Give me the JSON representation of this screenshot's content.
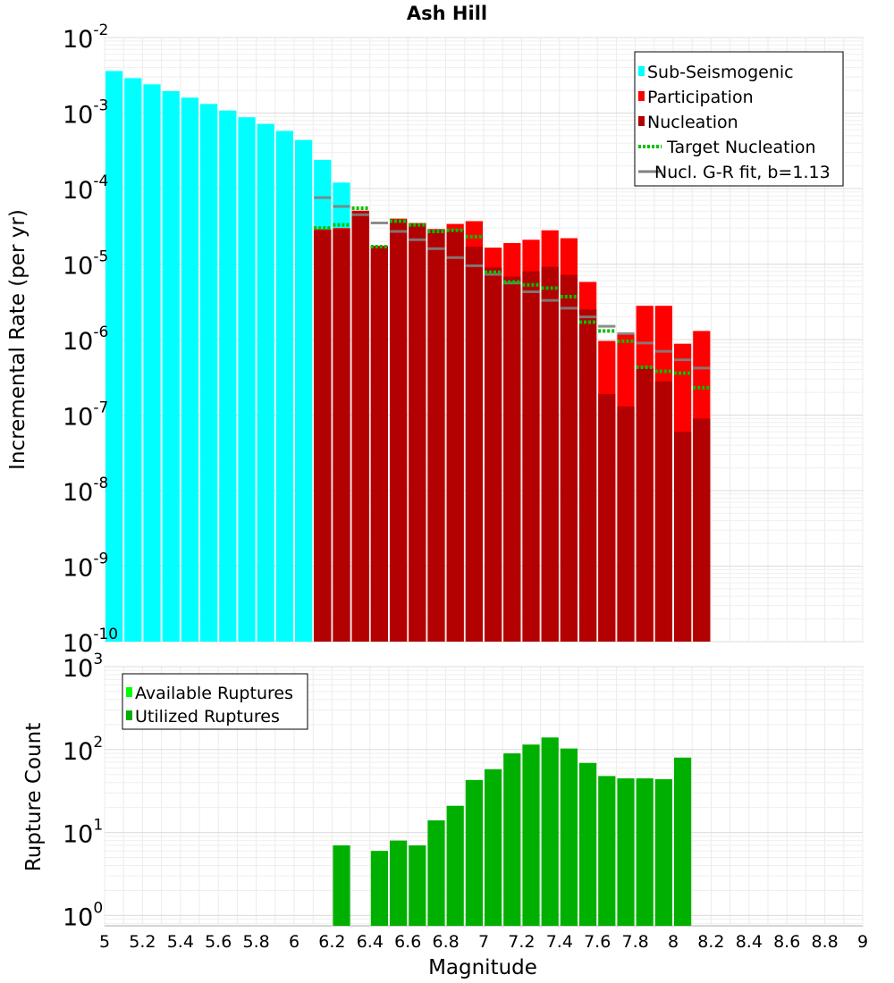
{
  "chart_data": [
    {
      "type": "bar",
      "title": "Ash Hill",
      "xlabel": "",
      "ylabel": "Incremental Rate (per yr)",
      "yscale": "log",
      "xlim": [
        5,
        9
      ],
      "ylim": [
        1e-10,
        0.01
      ],
      "y_ticks": [
        {
          "base": "10",
          "exp": "-2",
          "value": 0.01
        },
        {
          "base": "10",
          "exp": "-3",
          "value": 0.001
        },
        {
          "base": "10",
          "exp": "-4",
          "value": 0.0001
        },
        {
          "base": "10",
          "exp": "-5",
          "value": 1e-05
        },
        {
          "base": "10",
          "exp": "-6",
          "value": 1e-06
        },
        {
          "base": "10",
          "exp": "-7",
          "value": 1e-07
        },
        {
          "base": "10",
          "exp": "-8",
          "value": 1e-08
        },
        {
          "base": "10",
          "exp": "-9",
          "value": 1e-09
        },
        {
          "base": "10",
          "exp": "-10",
          "value": 1e-10
        }
      ],
      "legend": [
        {
          "label": "Sub-Seismogenic",
          "color": "#00ffff",
          "kind": "box"
        },
        {
          "label": "Participation",
          "color": "#ff0000",
          "kind": "box"
        },
        {
          "label": "Nucleation",
          "color": "#b30000",
          "kind": "box"
        },
        {
          "label": "Target Nucleation",
          "color": "#00c000",
          "kind": "dotted"
        },
        {
          "label": "Nucl. G-R fit, b=1.13",
          "color": "#808080",
          "kind": "line"
        }
      ],
      "series": [
        {
          "name": "Sub-Seismogenic",
          "color": "#00ffff",
          "x": [
            5.05,
            5.15,
            5.25,
            5.35,
            5.45,
            5.55,
            5.65,
            5.75,
            5.85,
            5.95,
            6.05,
            6.15,
            6.25
          ],
          "values": [
            0.0036,
            0.0029,
            0.0024,
            0.00195,
            0.0016,
            0.00132,
            0.00108,
            0.00088,
            0.00072,
            0.00058,
            0.00044,
            0.00024,
            0.00012
          ]
        },
        {
          "name": "Participation",
          "color": "#ff0000",
          "x": [
            6.15,
            6.25,
            6.35,
            6.45,
            6.55,
            6.65,
            6.75,
            6.85,
            6.95,
            7.05,
            7.15,
            7.25,
            7.35,
            7.45,
            7.55,
            7.65,
            7.75,
            7.85,
            7.95,
            8.05,
            8.15
          ],
          "values": [
            2.9e-05,
            3e-05,
            5.1e-05,
            1.75e-05,
            4e-05,
            3.5e-05,
            2.9e-05,
            3.4e-05,
            3.7e-05,
            1.65e-05,
            1.9e-05,
            2.1e-05,
            2.8e-05,
            2.2e-05,
            5.8e-06,
            9.6e-07,
            1.18e-06,
            2.8e-06,
            2.8e-06,
            8.8e-07,
            1.3e-06
          ]
        },
        {
          "name": "Nucleation",
          "color": "#b30000",
          "x": [
            6.15,
            6.25,
            6.35,
            6.45,
            6.55,
            6.65,
            6.75,
            6.85,
            6.95,
            7.05,
            7.15,
            7.25,
            7.35,
            7.45,
            7.55,
            7.65,
            7.75,
            7.85,
            7.95,
            8.05,
            8.15
          ],
          "values": [
            2.8e-05,
            2.9e-05,
            5e-05,
            1.7e-05,
            3.9e-05,
            3.4e-05,
            2.9e-05,
            2.8e-05,
            1.7e-05,
            9e-06,
            6.8e-06,
            8e-06,
            9.2e-06,
            7.2e-06,
            2.5e-06,
            1.9e-07,
            1.3e-07,
            4.2e-07,
            2.8e-07,
            6e-08,
            9e-08
          ]
        },
        {
          "name": "Target Nucleation",
          "color": "#00c000",
          "style": "dotted",
          "x": [
            6.15,
            6.25,
            6.35,
            6.45,
            6.55,
            6.65,
            6.75,
            6.85,
            6.95,
            7.05,
            7.15,
            7.25,
            7.35,
            7.45,
            7.55,
            7.65,
            7.75,
            7.85,
            7.95,
            8.05,
            8.15
          ],
          "values": [
            3e-05,
            3.3e-05,
            5.5e-05,
            1.7e-05,
            3.7e-05,
            3.3e-05,
            2.7e-05,
            2.8e-05,
            2.3e-05,
            7.8e-06,
            5.8e-06,
            5.3e-06,
            4.8e-06,
            3.7e-06,
            1.7e-06,
            1.3e-06,
            9.5e-07,
            4.3e-07,
            3.8e-07,
            3.6e-07,
            2.3e-07
          ]
        },
        {
          "name": "Nucl. G-R fit, b=1.13",
          "color": "#808080",
          "style": "solid",
          "x": [
            6.15,
            6.25,
            6.35,
            6.45,
            6.55,
            6.65,
            6.75,
            6.85,
            6.95,
            7.05,
            7.15,
            7.25,
            7.35,
            7.45,
            7.55,
            7.65,
            7.75,
            7.85,
            7.95,
            8.05,
            8.15
          ],
          "values": [
            7.6e-05,
            5.8e-05,
            4.5e-05,
            3.5e-05,
            2.7e-05,
            2.1e-05,
            1.6e-05,
            1.22e-05,
            9.5e-06,
            7.3e-06,
            5.6e-06,
            4.3e-06,
            3.3e-06,
            2.6e-06,
            2e-06,
            1.5e-06,
            1.2e-06,
            9e-07,
            7e-07,
            5.4e-07,
            4.2e-07
          ]
        }
      ]
    },
    {
      "type": "bar",
      "title": "",
      "xlabel": "Magnitude",
      "ylabel": "Rupture Count",
      "yscale": "log",
      "xlim": [
        5,
        9
      ],
      "ylim": [
        0.75,
        1000
      ],
      "x_ticks": [
        "5",
        "5.2",
        "5.4",
        "5.6",
        "5.8",
        "6",
        "6.2",
        "6.4",
        "6.6",
        "6.8",
        "7",
        "7.2",
        "7.4",
        "7.6",
        "7.8",
        "8",
        "8.2",
        "8.4",
        "8.6",
        "8.8",
        "9"
      ],
      "y_ticks": [
        {
          "base": "10",
          "exp": "3",
          "value": 1000
        },
        {
          "base": "10",
          "exp": "2",
          "value": 100
        },
        {
          "base": "10",
          "exp": "1",
          "value": 10
        },
        {
          "base": "10",
          "exp": "0",
          "value": 1
        }
      ],
      "legend": [
        {
          "label": "Available Ruptures",
          "color": "#00ff00",
          "kind": "box"
        },
        {
          "label": "Utilized Ruptures",
          "color": "#00b000",
          "kind": "box"
        }
      ],
      "series": [
        {
          "name": "Utilized Ruptures",
          "color": "#00b000",
          "x": [
            6.25,
            6.45,
            6.55,
            6.65,
            6.75,
            6.85,
            6.95,
            7.05,
            7.15,
            7.25,
            7.35,
            7.45,
            7.55,
            7.65,
            7.75,
            7.85,
            7.95,
            8.05
          ],
          "values": [
            7,
            6,
            8,
            7,
            14,
            21,
            43,
            58,
            90,
            115,
            140,
            103,
            69,
            48,
            45,
            45,
            44,
            80
          ]
        }
      ]
    }
  ]
}
